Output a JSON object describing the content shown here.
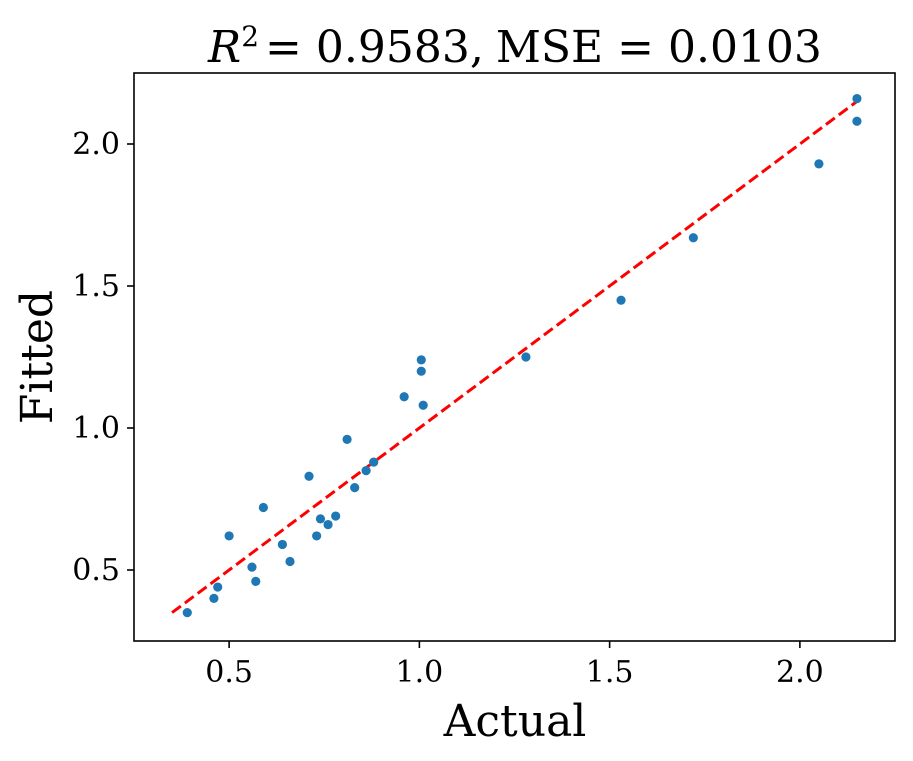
{
  "chart_data": {
    "type": "scatter",
    "title": "R^2 = 0.9583, MSE = 0.0103",
    "title_parts": {
      "r_symbol": "R",
      "r_exponent": "2",
      "r_value": "= 0.9583,",
      "mse_text": "MSE = 0.0103"
    },
    "xlabel": "Actual",
    "ylabel": "Fitted",
    "xlim": [
      0.25,
      2.25
    ],
    "ylim": [
      0.25,
      2.25
    ],
    "xticks": [
      0.5,
      1.0,
      1.5,
      2.0
    ],
    "xtick_labels": [
      "0.5",
      "1.0",
      "1.5",
      "2.0"
    ],
    "yticks": [
      0.5,
      1.0,
      1.5,
      2.0
    ],
    "ytick_labels": [
      "0.5",
      "1.0",
      "1.5",
      "2.0"
    ],
    "grid": false,
    "series": [
      {
        "name": "points",
        "color": "#1f77b4",
        "x": [
          0.39,
          0.46,
          0.47,
          0.5,
          0.56,
          0.57,
          0.59,
          0.64,
          0.66,
          0.71,
          0.73,
          0.74,
          0.76,
          0.78,
          0.81,
          0.83,
          0.86,
          0.88,
          0.96,
          1.005,
          1.005,
          1.01,
          1.28,
          1.53,
          1.72,
          2.05,
          2.15,
          2.15
        ],
        "y": [
          0.35,
          0.4,
          0.44,
          0.62,
          0.51,
          0.46,
          0.72,
          0.59,
          0.53,
          0.83,
          0.62,
          0.68,
          0.66,
          0.69,
          0.96,
          0.79,
          0.85,
          0.88,
          1.11,
          1.24,
          1.2,
          1.08,
          1.25,
          1.45,
          1.67,
          1.93,
          2.16,
          2.08
        ]
      }
    ],
    "reference_line": {
      "color": "#ff0000",
      "style": "dashed",
      "x": [
        0.35,
        2.15
      ],
      "y": [
        0.35,
        2.15
      ]
    }
  }
}
